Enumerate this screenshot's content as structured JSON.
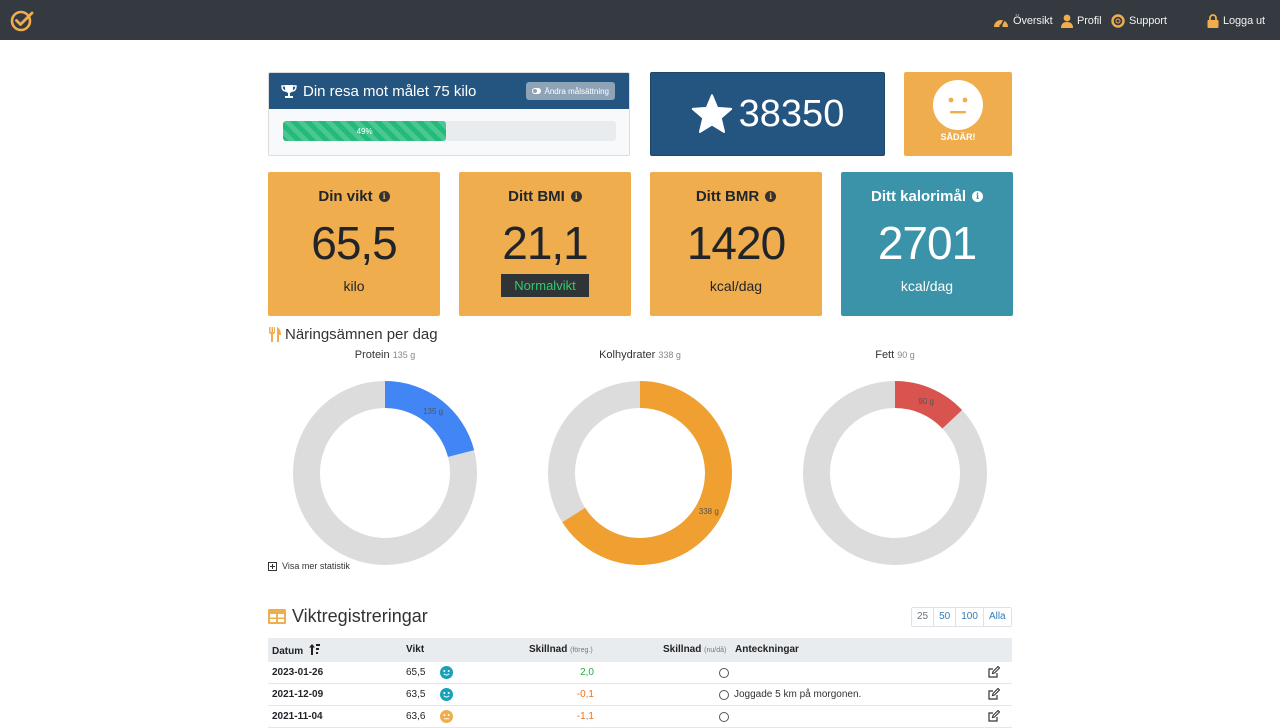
{
  "nav": {
    "items": [
      {
        "label": "Översikt",
        "icon": "dashboard-icon"
      },
      {
        "label": "Profil",
        "icon": "user-icon"
      },
      {
        "label": "Support",
        "icon": "lifebuoy-icon"
      },
      {
        "label": "Logga ut",
        "icon": "lock-icon"
      }
    ],
    "logo_icon": "check-circle-logo",
    "colors": {
      "bar": "#343a40",
      "logo": "#f0ad4e"
    }
  },
  "goal": {
    "title": "Din resa mot målet 75 kilo",
    "change_button": "Ändra målsättning",
    "progress_label": "49%",
    "progress_value": 49
  },
  "points": {
    "value": "38350",
    "icon": "star-icon"
  },
  "mood": {
    "label": "SÅDÄR!",
    "icon": "neutral-face-icon"
  },
  "stats": [
    {
      "title": "Din vikt",
      "value": "65,5",
      "unit": "kilo"
    },
    {
      "title": "Ditt BMI",
      "value": "21,1",
      "badge": "Normalvikt"
    },
    {
      "title": "Ditt BMR",
      "value": "1420",
      "unit": "kcal/dag"
    },
    {
      "title": "Ditt kalorimål",
      "value": "2701",
      "unit": "kcal/dag"
    }
  ],
  "nutrients": {
    "title": "Näringsämnen per dag",
    "icon": "fork-knife-icon",
    "donuts": [
      {
        "name": "Protein",
        "amount": "135 g",
        "slice_label": "135 g",
        "fraction": 0.21,
        "color": "#4285f4"
      },
      {
        "name": "Kolhydrater",
        "amount": "338 g",
        "slice_label": "338 g",
        "fraction": 0.66,
        "color": "#f0a030"
      },
      {
        "name": "Fett",
        "amount": "90 g",
        "slice_label": "90 g",
        "fraction": 0.13,
        "color": "#d9534f"
      }
    ],
    "more_stats": "Visa mer statistik"
  },
  "weights": {
    "title": "Viktregistreringar",
    "icon": "table-icon",
    "pager": [
      "25",
      "50",
      "100",
      "Alla"
    ],
    "headers": {
      "date": "Datum",
      "weight": "Vikt",
      "diff_prev": "Skillnad",
      "diff_prev_small": "(föreg.)",
      "diff_now": "Skillnad",
      "diff_now_small": "(nu/då)",
      "notes": "Anteckningar"
    },
    "rows": [
      {
        "date": "2023-01-26",
        "weight": "65,5",
        "mood": "happy",
        "mood_color": "#17a2b8",
        "diff": "2,0",
        "diff_color": "#28a745",
        "note": ""
      },
      {
        "date": "2021-12-09",
        "weight": "63,5",
        "mood": "happy",
        "mood_color": "#17a2b8",
        "diff": "-0,1",
        "diff_color": "#e8731a",
        "note": "Joggade 5 km på morgonen."
      },
      {
        "date": "2021-11-04",
        "weight": "63,6",
        "mood": "neutral",
        "mood_color": "#f0ad4e",
        "diff": "-1,1",
        "diff_color": "#e8731a",
        "note": ""
      }
    ]
  }
}
